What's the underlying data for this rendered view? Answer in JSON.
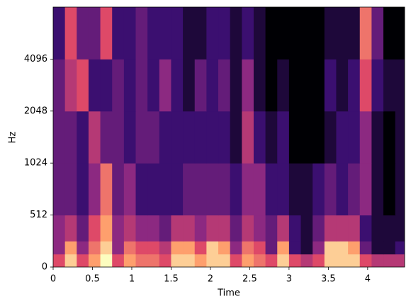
{
  "chart_data": {
    "type": "spectrogram",
    "xlabel": "Time",
    "ylabel": "Hz",
    "xlim": [
      0,
      4.47
    ],
    "xticks": [
      0,
      0.5,
      1,
      1.5,
      2,
      2.5,
      3,
      3.5,
      4
    ],
    "ylim": [
      0,
      8192
    ],
    "yticks": [
      0,
      512,
      1024,
      2048,
      4096
    ],
    "yscale": "symlog",
    "linthresh": 512,
    "colormap": [
      "#000004",
      "#3b0f70",
      "#8c2981",
      "#de4968",
      "#fe9f6d",
      "#fcfdbf"
    ],
    "time_bins": [
      0,
      0.15,
      0.3,
      0.45,
      0.6,
      0.75,
      0.9,
      1.05,
      1.2,
      1.35,
      1.5,
      1.65,
      1.8,
      1.95,
      2.1,
      2.25,
      2.4,
      2.55,
      2.7,
      2.85,
      3.0,
      3.15,
      3.3,
      3.45,
      3.6,
      3.75,
      3.9,
      4.05,
      4.2,
      4.35,
      4.5
    ],
    "freq_bins": [
      0,
      128,
      256,
      512,
      1024,
      2048,
      4096,
      8192
    ],
    "values": [
      [
        0.6,
        0.9,
        0.6,
        0.8,
        1.0,
        0.6,
        0.8,
        0.7,
        0.7,
        0.6,
        0.9,
        0.9,
        0.8,
        0.9,
        0.9,
        0.6,
        0.8,
        0.7,
        0.6,
        0.9,
        0.6,
        0.5,
        0.6,
        0.9,
        0.9,
        0.9,
        0.6,
        0.5,
        0.5,
        0.5
      ],
      [
        0.4,
        0.8,
        0.4,
        0.7,
        0.9,
        0.4,
        0.7,
        0.6,
        0.6,
        0.5,
        0.8,
        0.8,
        0.6,
        0.9,
        0.8,
        0.4,
        0.7,
        0.6,
        0.3,
        0.8,
        0.2,
        0.1,
        0.4,
        0.9,
        0.9,
        0.8,
        0.3,
        0.1,
        0.1,
        0.2
      ],
      [
        0.4,
        0.5,
        0.3,
        0.6,
        0.8,
        0.4,
        0.5,
        0.4,
        0.4,
        0.3,
        0.5,
        0.5,
        0.4,
        0.5,
        0.5,
        0.3,
        0.5,
        0.4,
        0.3,
        0.5,
        0.2,
        0.1,
        0.3,
        0.5,
        0.5,
        0.5,
        0.2,
        0.1,
        0.1,
        0.1
      ],
      [
        0.3,
        0.3,
        0.2,
        0.4,
        0.7,
        0.3,
        0.4,
        0.2,
        0.2,
        0.2,
        0.2,
        0.3,
        0.3,
        0.3,
        0.3,
        0.2,
        0.4,
        0.4,
        0.2,
        0.2,
        0.1,
        0.1,
        0.2,
        0.3,
        0.2,
        0.3,
        0.4,
        0.1,
        0.0,
        0.1
      ],
      [
        0.3,
        0.3,
        0.2,
        0.5,
        0.3,
        0.3,
        0.2,
        0.3,
        0.3,
        0.2,
        0.2,
        0.2,
        0.2,
        0.2,
        0.2,
        0.1,
        0.5,
        0.2,
        0.1,
        0.2,
        0.0,
        0.0,
        0.0,
        0.1,
        0.2,
        0.2,
        0.4,
        0.1,
        0.0,
        0.1
      ],
      [
        0.3,
        0.5,
        0.6,
        0.2,
        0.2,
        0.3,
        0.2,
        0.3,
        0.2,
        0.4,
        0.2,
        0.1,
        0.3,
        0.2,
        0.3,
        0.1,
        0.4,
        0.1,
        0.0,
        0.1,
        0.0,
        0.0,
        0.0,
        0.2,
        0.1,
        0.2,
        0.6,
        0.2,
        0.1,
        0.1
      ],
      [
        0.2,
        0.6,
        0.3,
        0.3,
        0.6,
        0.2,
        0.2,
        0.3,
        0.2,
        0.2,
        0.2,
        0.1,
        0.1,
        0.2,
        0.2,
        0.1,
        0.2,
        0.1,
        0.0,
        0.0,
        0.0,
        0.0,
        0.0,
        0.1,
        0.1,
        0.1,
        0.7,
        0.3,
        0.0,
        0.0
      ]
    ]
  }
}
